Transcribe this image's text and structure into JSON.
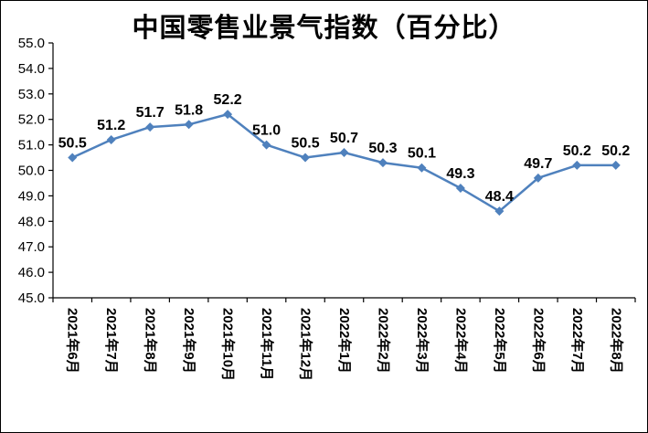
{
  "chart_data": {
    "type": "line",
    "title": "中国零售业景气指数（百分比）",
    "categories": [
      "2021年6月",
      "2021年7月",
      "2021年8月",
      "2021年9月",
      "2021年10月",
      "2021年11月",
      "2021年12月",
      "2022年1月",
      "2022年2月",
      "2022年3月",
      "2022年4月",
      "2022年5月",
      "2022年6月",
      "2022年7月",
      "2022年8月"
    ],
    "values": [
      50.5,
      51.2,
      51.7,
      51.8,
      52.2,
      51.0,
      50.5,
      50.7,
      50.3,
      50.1,
      49.3,
      48.4,
      49.7,
      50.2,
      50.2
    ],
    "ylim": [
      45.0,
      55.0
    ],
    "ytick_step": 1.0,
    "ytick_decimals": 1,
    "xlabel": "",
    "ylabel": "",
    "grid": false,
    "legend_position": "none",
    "data_labels_shown": true,
    "line_color": "#4f81bd",
    "marker": "diamond",
    "axis_color": "#000000",
    "text_color": "#000000",
    "background_color": "#ffffff"
  }
}
